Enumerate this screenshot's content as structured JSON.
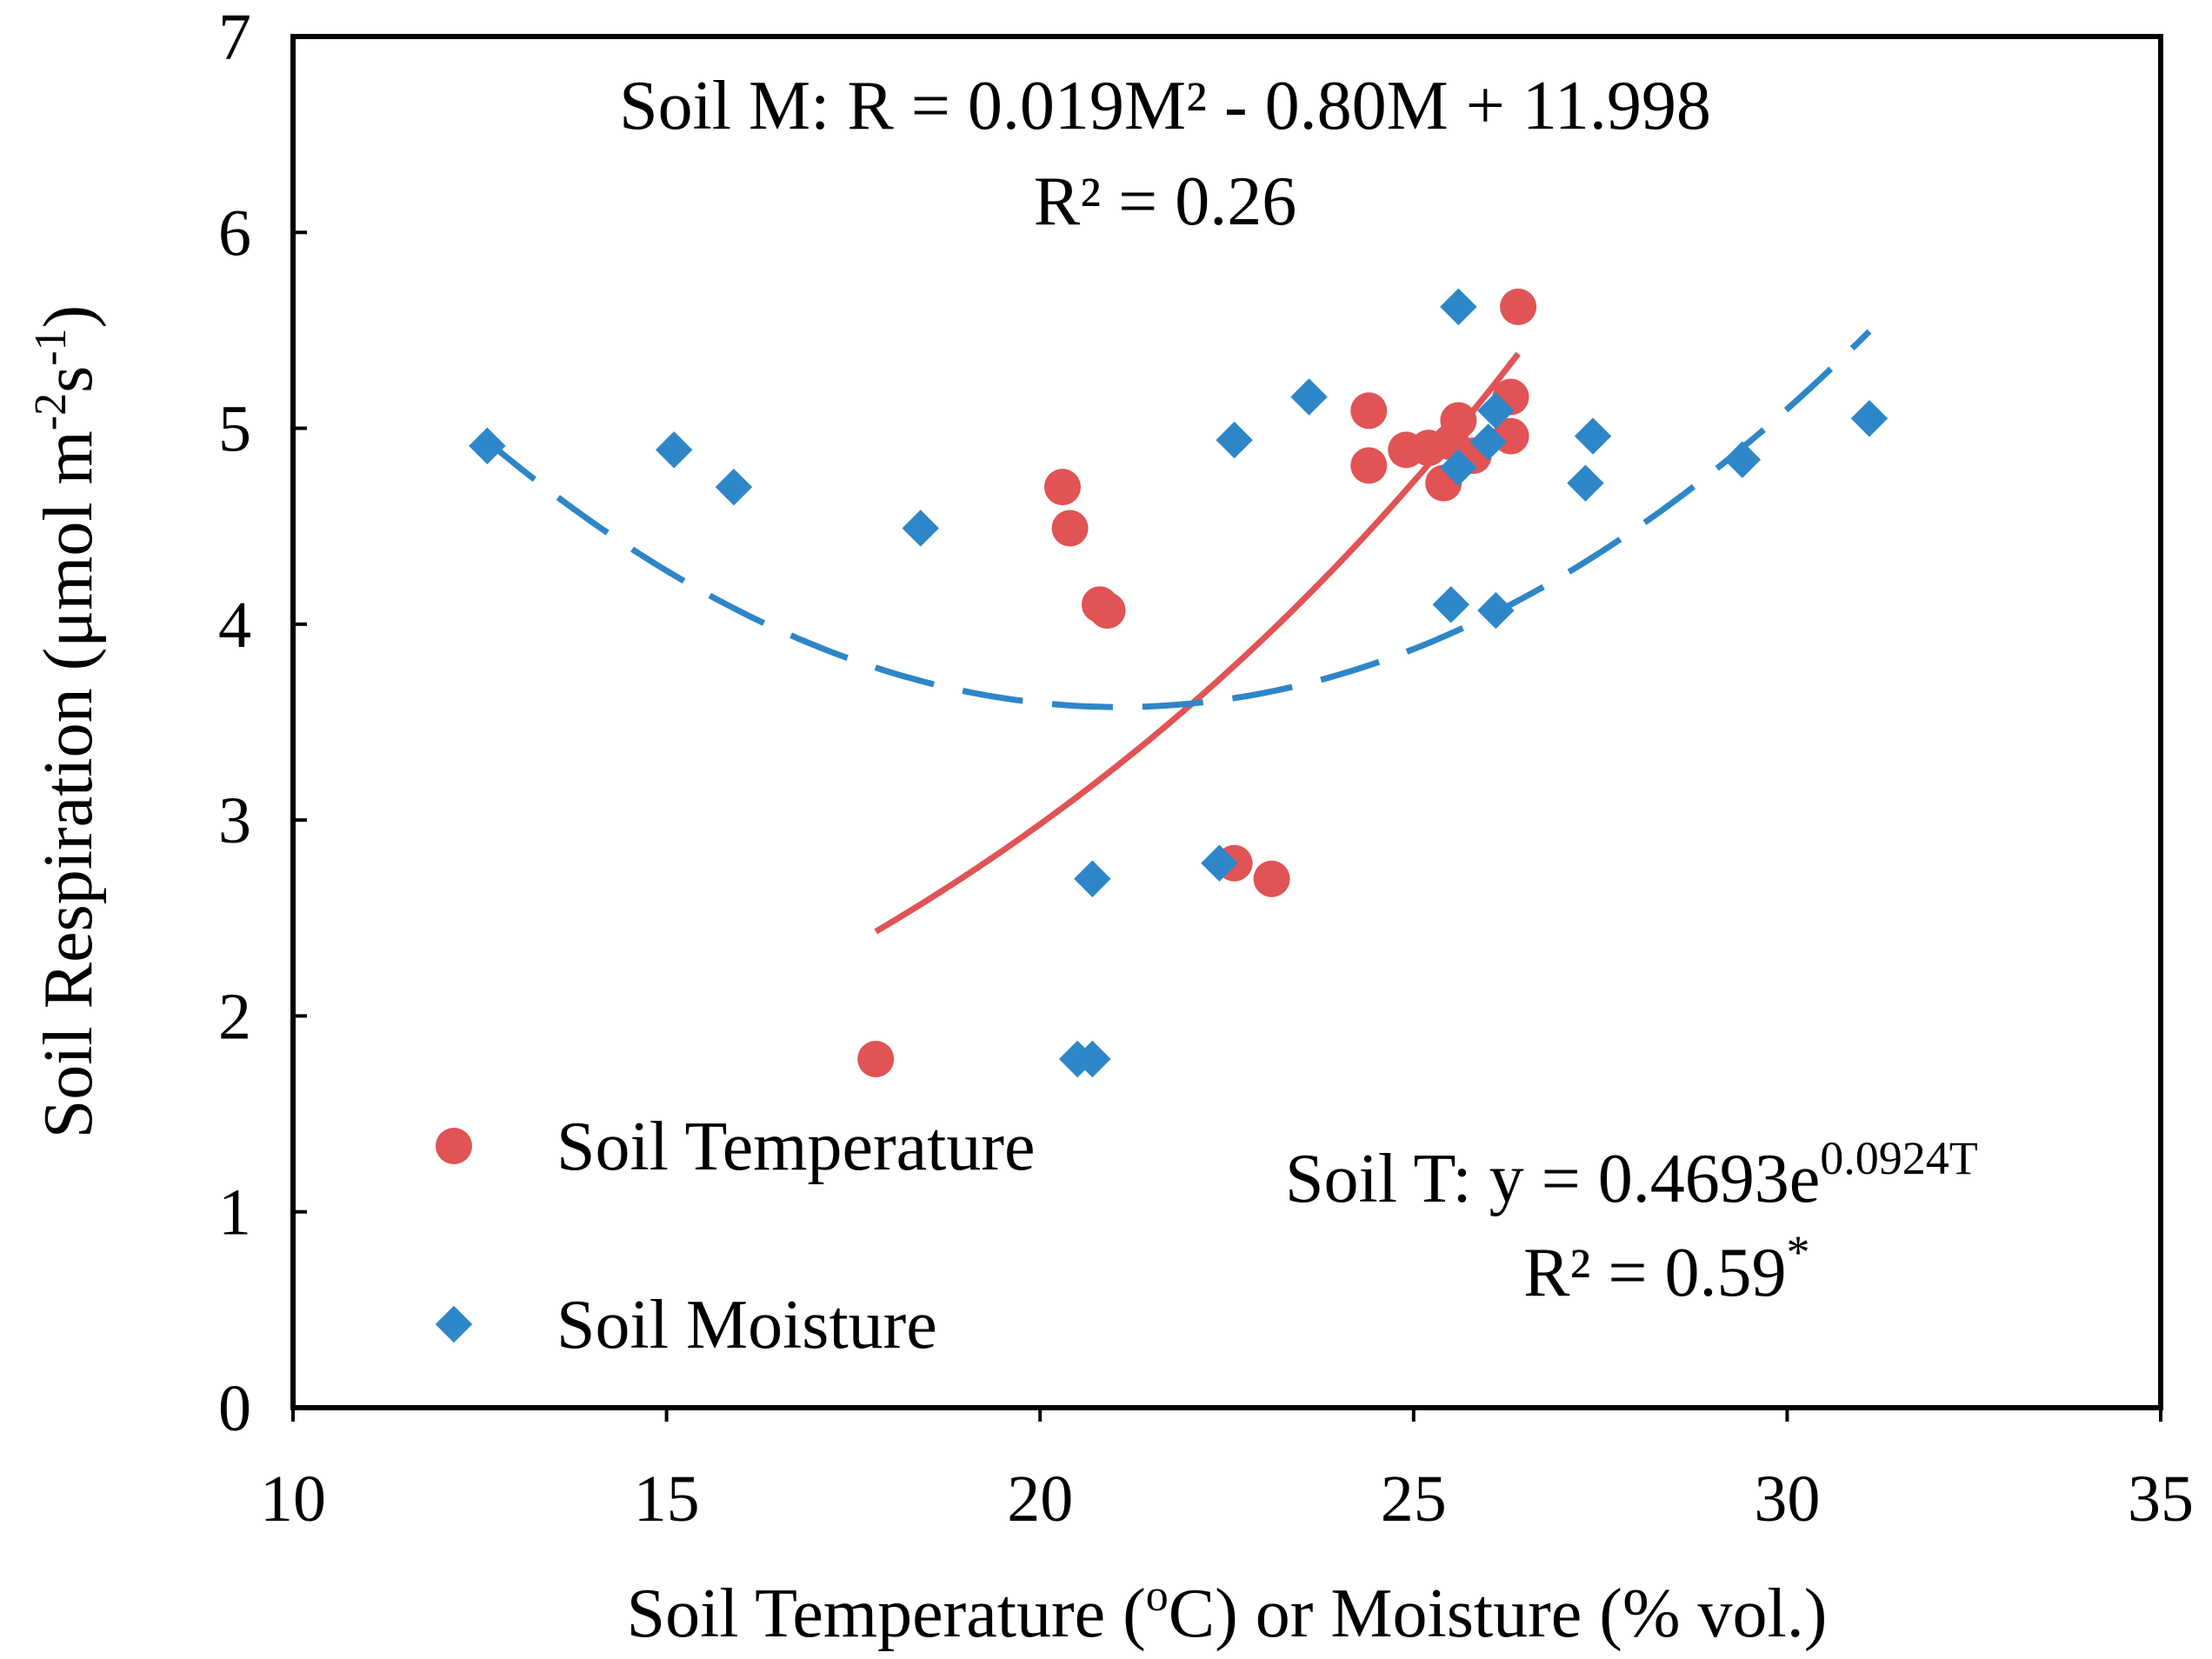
{
  "chart_data": {
    "type": "scatter",
    "xlabel": "Soil Temperature (oC) or Moisture (% vol.)",
    "ylabel": "Soil Respiration (μmol m-2s-1)",
    "xlim": [
      10,
      35
    ],
    "ylim": [
      0,
      7
    ],
    "xticks": [
      10,
      15,
      20,
      25,
      30,
      35
    ],
    "yticks": [
      0,
      1,
      2,
      3,
      4,
      5,
      6,
      7
    ],
    "grid": false,
    "legend_position": "bottom-left",
    "series": [
      {
        "name": "Soil Temperature",
        "marker": "circle",
        "color": "#E15354",
        "x": [
          17.8,
          20.3,
          20.4,
          20.8,
          20.9,
          22.6,
          23.1,
          24.4,
          24.4,
          24.9,
          25.2,
          25.4,
          25.5,
          25.6,
          25.8,
          26.3,
          26.3,
          26.4
        ],
        "y": [
          1.78,
          4.7,
          4.49,
          4.1,
          4.07,
          2.78,
          2.7,
          5.09,
          4.81,
          4.89,
          4.9,
          4.72,
          4.93,
          5.04,
          4.86,
          5.16,
          4.96,
          5.62
        ]
      },
      {
        "name": "Soil Moisture",
        "marker": "diamond",
        "color": "#2D86C8",
        "x": [
          12.6,
          15.1,
          15.9,
          18.4,
          20.5,
          20.7,
          20.7,
          22.4,
          22.6,
          23.6,
          25.5,
          25.6,
          25.6,
          26.0,
          26.1,
          26.1,
          27.3,
          27.4,
          29.4,
          31.1
        ],
        "y": [
          4.91,
          4.89,
          4.7,
          4.49,
          1.78,
          1.78,
          2.7,
          2.78,
          4.94,
          5.16,
          4.1,
          4.8,
          5.62,
          4.93,
          5.09,
          4.07,
          4.72,
          4.96,
          4.84,
          5.05
        ]
      }
    ],
    "fits": [
      {
        "name": "Soil Temperature fit",
        "kind": "exponential",
        "a": 0.4693,
        "b": 0.0924,
        "domain": [
          17.8,
          26.4
        ],
        "color": "#E15354",
        "dashed": false
      },
      {
        "name": "Soil Moisture fit",
        "kind": "quadratic",
        "coefficients": [
          0.019,
          -0.8,
          11.998
        ],
        "domain": [
          12.6,
          31.1
        ],
        "color": "#2D86C8",
        "dashed": true
      }
    ],
    "annotations": {
      "moisture_equation": "Soil M: R = 0.019M² - 0.80M + 11.998",
      "moisture_r2": "R² = 0.26",
      "temperature_equation_prefix": "Soil T: y = 0.4693e",
      "temperature_equation_exponent": "0.0924T",
      "temperature_r2_prefix": "R² = 0.59",
      "temperature_r2_marker": "*"
    }
  }
}
